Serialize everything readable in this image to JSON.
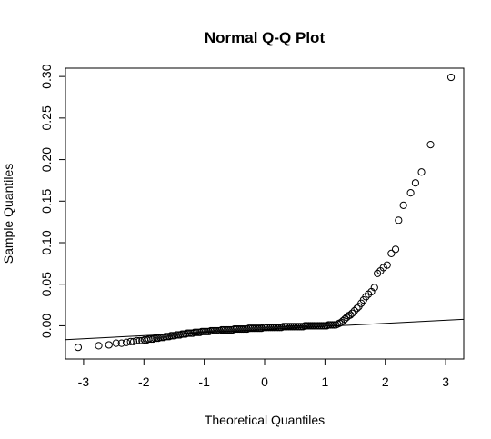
{
  "chart_data": {
    "type": "scatter",
    "title": "Normal Q-Q Plot",
    "xlabel": "Theoretical Quantiles",
    "ylabel": "Sample Quantiles",
    "xlim": [
      -3.3,
      3.3
    ],
    "ylim": [
      -0.04,
      0.31
    ],
    "x_ticks": [
      -3,
      -2,
      -1,
      0,
      1,
      2,
      3
    ],
    "x_tick_labels": [
      "-3",
      "-2",
      "-1",
      "0",
      "1",
      "2",
      "3"
    ],
    "y_ticks": [
      0,
      0.05,
      0.1,
      0.15,
      0.2,
      0.25,
      0.3
    ],
    "y_tick_labels": [
      "0.00",
      "0.05",
      "0.10",
      "0.15",
      "0.20",
      "0.25",
      "0.30"
    ],
    "grid": false,
    "marker": "open-circle",
    "reference_line": {
      "slope": 0.0037,
      "intercept": -0.0045
    },
    "points": [
      [
        -3.09,
        -0.026
      ],
      [
        -2.75,
        -0.024
      ],
      [
        -2.58,
        -0.023
      ],
      [
        -2.46,
        -0.021
      ],
      [
        -2.37,
        -0.021
      ],
      [
        -2.29,
        -0.02
      ],
      [
        -2.22,
        -0.019
      ],
      [
        -2.17,
        -0.019
      ],
      [
        -2.12,
        -0.018
      ],
      [
        -2.07,
        -0.018
      ],
      [
        -2.03,
        -0.018
      ],
      [
        -1.99,
        -0.017
      ],
      [
        -1.95,
        -0.017
      ],
      [
        -1.92,
        -0.016
      ],
      [
        -1.88,
        -0.016
      ],
      [
        -1.85,
        -0.016
      ],
      [
        -1.82,
        -0.015
      ],
      [
        -1.79,
        -0.015
      ],
      [
        -1.76,
        -0.015
      ],
      [
        -1.73,
        -0.014
      ],
      [
        -1.7,
        -0.014
      ],
      [
        -1.67,
        -0.014
      ],
      [
        -1.64,
        -0.013
      ],
      [
        -1.61,
        -0.013
      ],
      [
        -1.58,
        -0.013
      ],
      [
        -1.55,
        -0.012
      ],
      [
        -1.52,
        -0.012
      ],
      [
        -1.49,
        -0.012
      ],
      [
        -1.46,
        -0.011
      ],
      [
        -1.43,
        -0.011
      ],
      [
        -1.4,
        -0.011
      ],
      [
        -1.37,
        -0.01
      ],
      [
        -1.34,
        -0.01
      ],
      [
        -1.31,
        -0.01
      ],
      [
        -1.28,
        -0.009
      ],
      [
        -1.25,
        -0.009
      ],
      [
        -1.22,
        -0.009
      ],
      [
        -1.19,
        -0.009
      ],
      [
        -1.16,
        -0.008
      ],
      [
        -1.13,
        -0.008
      ],
      [
        -1.1,
        -0.008
      ],
      [
        -1.07,
        -0.008
      ],
      [
        -1.04,
        -0.007
      ],
      [
        -1.01,
        -0.007
      ],
      [
        -0.98,
        -0.007
      ],
      [
        -0.95,
        -0.007
      ],
      [
        -0.92,
        -0.007
      ],
      [
        -0.89,
        -0.006
      ],
      [
        -0.86,
        -0.006
      ],
      [
        -0.83,
        -0.006
      ],
      [
        -0.8,
        -0.006
      ],
      [
        -0.77,
        -0.006
      ],
      [
        -0.74,
        -0.006
      ],
      [
        -0.71,
        -0.005
      ],
      [
        -0.68,
        -0.005
      ],
      [
        -0.65,
        -0.005
      ],
      [
        -0.62,
        -0.005
      ],
      [
        -0.59,
        -0.005
      ],
      [
        -0.56,
        -0.005
      ],
      [
        -0.53,
        -0.005
      ],
      [
        -0.5,
        -0.004
      ],
      [
        -0.47,
        -0.004
      ],
      [
        -0.44,
        -0.004
      ],
      [
        -0.41,
        -0.004
      ],
      [
        -0.38,
        -0.004
      ],
      [
        -0.35,
        -0.004
      ],
      [
        -0.32,
        -0.004
      ],
      [
        -0.29,
        -0.004
      ],
      [
        -0.26,
        -0.003
      ],
      [
        -0.23,
        -0.003
      ],
      [
        -0.2,
        -0.003
      ],
      [
        -0.17,
        -0.003
      ],
      [
        -0.14,
        -0.003
      ],
      [
        -0.11,
        -0.003
      ],
      [
        -0.08,
        -0.003
      ],
      [
        -0.05,
        -0.003
      ],
      [
        -0.02,
        -0.002
      ],
      [
        0.01,
        -0.002
      ],
      [
        0.04,
        -0.002
      ],
      [
        0.07,
        -0.002
      ],
      [
        0.1,
        -0.002
      ],
      [
        0.13,
        -0.002
      ],
      [
        0.16,
        -0.002
      ],
      [
        0.19,
        -0.002
      ],
      [
        0.22,
        -0.002
      ],
      [
        0.25,
        -0.002
      ],
      [
        0.28,
        -0.002
      ],
      [
        0.31,
        -0.001
      ],
      [
        0.34,
        -0.001
      ],
      [
        0.37,
        -0.001
      ],
      [
        0.4,
        -0.001
      ],
      [
        0.43,
        -0.001
      ],
      [
        0.46,
        -0.001
      ],
      [
        0.49,
        -0.001
      ],
      [
        0.52,
        -0.001
      ],
      [
        0.55,
        -0.001
      ],
      [
        0.58,
        -0.001
      ],
      [
        0.61,
        -0.001
      ],
      [
        0.64,
        -0.001
      ],
      [
        0.67,
        0.0
      ],
      [
        0.7,
        0.0
      ],
      [
        0.73,
        0.0
      ],
      [
        0.76,
        0.0
      ],
      [
        0.79,
        0.0
      ],
      [
        0.82,
        0.0
      ],
      [
        0.85,
        0.0
      ],
      [
        0.88,
        0.0
      ],
      [
        0.91,
        0.0
      ],
      [
        0.94,
        0.0
      ],
      [
        0.97,
        0.0
      ],
      [
        1.0,
        0.0
      ],
      [
        1.03,
        0.0
      ],
      [
        1.06,
        0.001
      ],
      [
        1.09,
        0.001
      ],
      [
        1.12,
        0.001
      ],
      [
        1.15,
        0.001
      ],
      [
        1.18,
        0.001
      ],
      [
        1.21,
        0.002
      ],
      [
        1.24,
        0.003
      ],
      [
        1.27,
        0.004
      ],
      [
        1.3,
        0.006
      ],
      [
        1.33,
        0.008
      ],
      [
        1.36,
        0.01
      ],
      [
        1.39,
        0.012
      ],
      [
        1.42,
        0.013
      ],
      [
        1.45,
        0.015
      ],
      [
        1.49,
        0.018
      ],
      [
        1.53,
        0.021
      ],
      [
        1.56,
        0.023
      ],
      [
        1.6,
        0.027
      ],
      [
        1.64,
        0.031
      ],
      [
        1.68,
        0.035
      ],
      [
        1.72,
        0.038
      ],
      [
        1.77,
        0.041
      ],
      [
        1.82,
        0.046
      ],
      [
        1.87,
        0.063
      ],
      [
        1.92,
        0.066
      ],
      [
        1.97,
        0.07
      ],
      [
        2.03,
        0.073
      ],
      [
        2.1,
        0.087
      ],
      [
        2.17,
        0.092
      ],
      [
        2.22,
        0.127
      ],
      [
        2.3,
        0.145
      ],
      [
        2.42,
        0.16
      ],
      [
        2.5,
        0.172
      ],
      [
        2.6,
        0.185
      ],
      [
        2.75,
        0.218
      ],
      [
        3.09,
        0.299
      ]
    ]
  }
}
